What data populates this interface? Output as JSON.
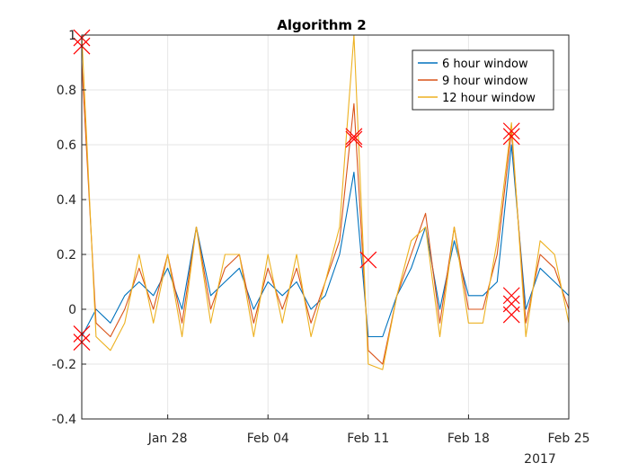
{
  "chart_data": {
    "type": "line",
    "title": "Algorithm 2",
    "xlabel": "",
    "ylabel": "",
    "x_tick_labels": [
      "Jan 28",
      "Feb 04",
      "Feb 11",
      "Feb 18",
      "Feb 25"
    ],
    "x_secondary_label": "2017",
    "xlim": [
      "2017-01-22",
      "2017-02-25"
    ],
    "ylim": [
      -0.4,
      1.0
    ],
    "y_ticks": [
      -0.4,
      -0.2,
      0,
      0.2,
      0.4,
      0.6,
      0.8,
      1
    ],
    "y_tick_labels": [
      "-0.4",
      "-0.2",
      "0",
      "0.2",
      "0.4",
      "0.6",
      "0.8",
      "1"
    ],
    "grid": true,
    "legend_position": "top-right",
    "series": [
      {
        "name": "6 hour window",
        "color": "#0072BD",
        "x": [
          "2017-01-22",
          "2017-01-23",
          "2017-01-24",
          "2017-01-25",
          "2017-01-26",
          "2017-01-27",
          "2017-01-28",
          "2017-01-29",
          "2017-01-30",
          "2017-01-31",
          "2017-02-01",
          "2017-02-02",
          "2017-02-03",
          "2017-02-04",
          "2017-02-05",
          "2017-02-06",
          "2017-02-07",
          "2017-02-08",
          "2017-02-09",
          "2017-02-10",
          "2017-02-11",
          "2017-02-12",
          "2017-02-13",
          "2017-02-14",
          "2017-02-15",
          "2017-02-16",
          "2017-02-17",
          "2017-02-18",
          "2017-02-19",
          "2017-02-20",
          "2017-02-21",
          "2017-02-22",
          "2017-02-23",
          "2017-02-24",
          "2017-02-25"
        ],
        "values": [
          -0.1,
          0.0,
          -0.05,
          0.05,
          0.1,
          0.05,
          0.15,
          0.0,
          0.3,
          0.05,
          0.1,
          0.15,
          0.0,
          0.1,
          0.05,
          0.1,
          0.0,
          0.05,
          0.2,
          0.5,
          -0.1,
          -0.1,
          0.05,
          0.15,
          0.3,
          0.0,
          0.25,
          0.05,
          0.05,
          0.1,
          0.6,
          0.0,
          0.15,
          0.1,
          0.05
        ]
      },
      {
        "name": "9 hour window",
        "color": "#D95319",
        "x": [
          "2017-01-22",
          "2017-01-23",
          "2017-01-24",
          "2017-01-25",
          "2017-01-26",
          "2017-01-27",
          "2017-01-28",
          "2017-01-29",
          "2017-01-30",
          "2017-01-31",
          "2017-02-01",
          "2017-02-02",
          "2017-02-03",
          "2017-02-04",
          "2017-02-05",
          "2017-02-06",
          "2017-02-07",
          "2017-02-08",
          "2017-02-09",
          "2017-02-10",
          "2017-02-11",
          "2017-02-12",
          "2017-02-13",
          "2017-02-14",
          "2017-02-15",
          "2017-02-16",
          "2017-02-17",
          "2017-02-18",
          "2017-02-19",
          "2017-02-20",
          "2017-02-21",
          "2017-02-22",
          "2017-02-23",
          "2017-02-24",
          "2017-02-25"
        ],
        "values": [
          0.9,
          -0.05,
          -0.1,
          0.0,
          0.15,
          0.0,
          0.2,
          -0.05,
          0.3,
          0.0,
          0.15,
          0.2,
          -0.05,
          0.15,
          0.0,
          0.15,
          -0.05,
          0.1,
          0.25,
          0.75,
          -0.15,
          -0.2,
          0.05,
          0.2,
          0.35,
          -0.05,
          0.3,
          0.0,
          0.0,
          0.2,
          0.65,
          -0.05,
          0.2,
          0.15,
          0.0
        ]
      },
      {
        "name": "12 hour window",
        "color": "#EDB120",
        "x": [
          "2017-01-22",
          "2017-01-23",
          "2017-01-24",
          "2017-01-25",
          "2017-01-26",
          "2017-01-27",
          "2017-01-28",
          "2017-01-29",
          "2017-01-30",
          "2017-01-31",
          "2017-02-01",
          "2017-02-02",
          "2017-02-03",
          "2017-02-04",
          "2017-02-05",
          "2017-02-06",
          "2017-02-07",
          "2017-02-08",
          "2017-02-09",
          "2017-02-10",
          "2017-02-11",
          "2017-02-12",
          "2017-02-13",
          "2017-02-14",
          "2017-02-15",
          "2017-02-16",
          "2017-02-17",
          "2017-02-18",
          "2017-02-19",
          "2017-02-20",
          "2017-02-21",
          "2017-02-22",
          "2017-02-23",
          "2017-02-24",
          "2017-02-25"
        ],
        "values": [
          1.0,
          -0.1,
          -0.15,
          -0.05,
          0.2,
          -0.05,
          0.2,
          -0.1,
          0.3,
          -0.05,
          0.2,
          0.2,
          -0.1,
          0.2,
          -0.05,
          0.2,
          -0.1,
          0.1,
          0.3,
          1.0,
          -0.2,
          -0.22,
          0.05,
          0.25,
          0.3,
          -0.1,
          0.3,
          -0.05,
          -0.05,
          0.25,
          0.68,
          -0.1,
          0.25,
          0.2,
          -0.05
        ]
      }
    ],
    "markers": {
      "color": "#FF0000",
      "shape": "x",
      "points": [
        {
          "x": "2017-01-22",
          "y": 0.99
        },
        {
          "x": "2017-01-22",
          "y": 0.96
        },
        {
          "x": "2017-01-22",
          "y": -0.09
        },
        {
          "x": "2017-01-22",
          "y": -0.12
        },
        {
          "x": "2017-02-10",
          "y": 0.62
        },
        {
          "x": "2017-02-10",
          "y": 0.63
        },
        {
          "x": "2017-02-11",
          "y": 0.18
        },
        {
          "x": "2017-02-21",
          "y": 0.65
        },
        {
          "x": "2017-02-21",
          "y": 0.63
        },
        {
          "x": "2017-02-21",
          "y": 0.05
        },
        {
          "x": "2017-02-21",
          "y": 0.02
        },
        {
          "x": "2017-02-21",
          "y": -0.02
        }
      ]
    }
  }
}
